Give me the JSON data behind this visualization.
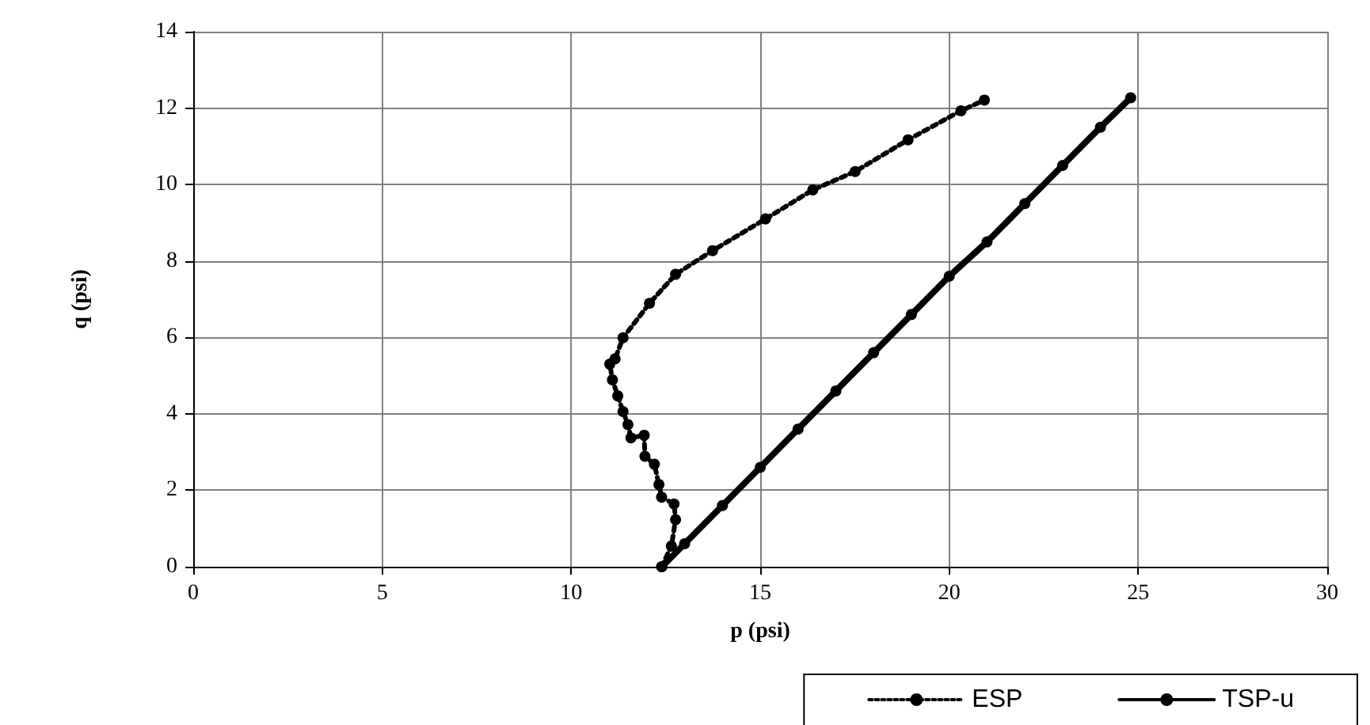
{
  "chart_data": {
    "type": "line",
    "xlabel": "p (psi)",
    "ylabel": "q (psi)",
    "xlim": [
      0,
      30
    ],
    "xticks": [
      0,
      5,
      10,
      15,
      20,
      25,
      30
    ],
    "ylim": [
      0,
      14
    ],
    "yticks": [
      0,
      2,
      4,
      6,
      8,
      10,
      12,
      14
    ],
    "grid": true,
    "legend": "bottom right",
    "marker": "circle",
    "series": [
      {
        "name": "ESP",
        "color": "#000000",
        "line_style": "dotted",
        "x": [
          12.39,
          12.65,
          12.76,
          12.72,
          12.39,
          12.32,
          12.2,
          11.95,
          11.93,
          11.58,
          11.5,
          11.37,
          11.23,
          11.09,
          11.02,
          11.16,
          11.37,
          12.07,
          12.76,
          13.74,
          15.14,
          16.39,
          17.51,
          18.91,
          20.31,
          20.93
        ],
        "values": [
          0,
          0.54,
          1.23,
          1.64,
          1.82,
          2.15,
          2.68,
          2.89,
          3.44,
          3.37,
          3.72,
          4.06,
          4.47,
          4.89,
          5.3,
          5.44,
          5.99,
          6.89,
          7.65,
          8.27,
          9.1,
          9.86,
          10.34,
          11.17,
          11.93,
          12.21
        ]
      },
      {
        "name": "TSP-u",
        "color": "#000000",
        "line_style": "solid",
        "x": [
          12.4,
          13,
          14,
          15,
          16,
          17,
          18,
          19,
          20,
          21,
          22,
          23,
          24,
          24.8
        ],
        "values": [
          0,
          0.6,
          1.6,
          2.6,
          3.6,
          4.6,
          5.6,
          6.6,
          7.6,
          8.5,
          9.5,
          10.5,
          11.5,
          12.27
        ]
      }
    ]
  }
}
